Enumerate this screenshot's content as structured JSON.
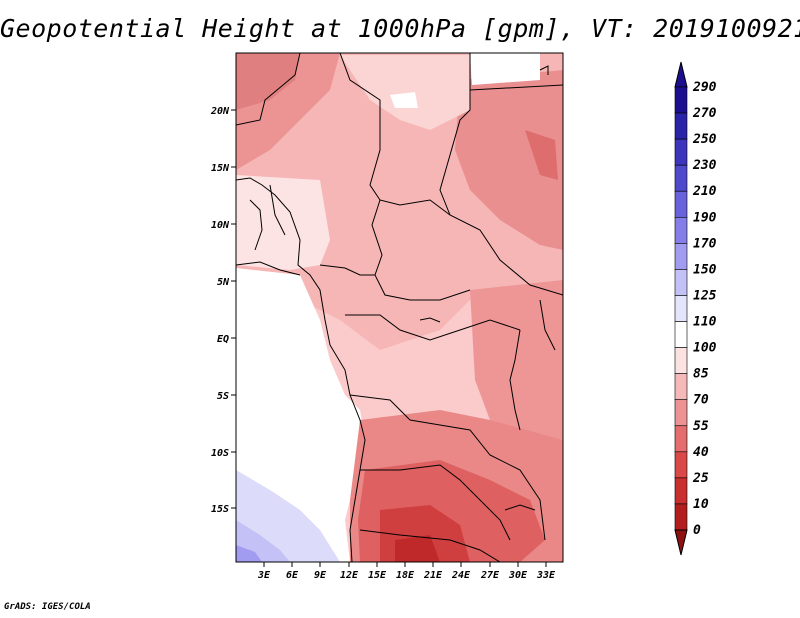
{
  "title": "Geopotential Height at 1000hPa [gpm], VT: 2019100921",
  "credit": "GrADS: IGES/COLA",
  "map": {
    "lat_labels": [
      "20N",
      "15N",
      "10N",
      "5N",
      "EQ",
      "5S",
      "10S",
      "15S"
    ],
    "lon_labels": [
      "3E",
      "6E",
      "9E",
      "12E",
      "15E",
      "18E",
      "21E",
      "24E",
      "27E",
      "30E",
      "33E"
    ]
  },
  "colorbar": {
    "levels": [
      "290",
      "270",
      "250",
      "230",
      "210",
      "190",
      "170",
      "150",
      "125",
      "110",
      "100",
      "85",
      "70",
      "55",
      "40",
      "25",
      "10",
      "0"
    ],
    "colors": [
      "#1b0f8f",
      "#2a23a8",
      "#3d35bb",
      "#4f49cc",
      "#6a62dc",
      "#857ee8",
      "#a29cf0",
      "#c4c1f6",
      "#e4e4fb",
      "#ffffff",
      "#fde2e2",
      "#f6b9b9",
      "#ee9393",
      "#e56d6d",
      "#da4848",
      "#c92f2f",
      "#b21e1e",
      "#8f1010"
    ]
  }
}
